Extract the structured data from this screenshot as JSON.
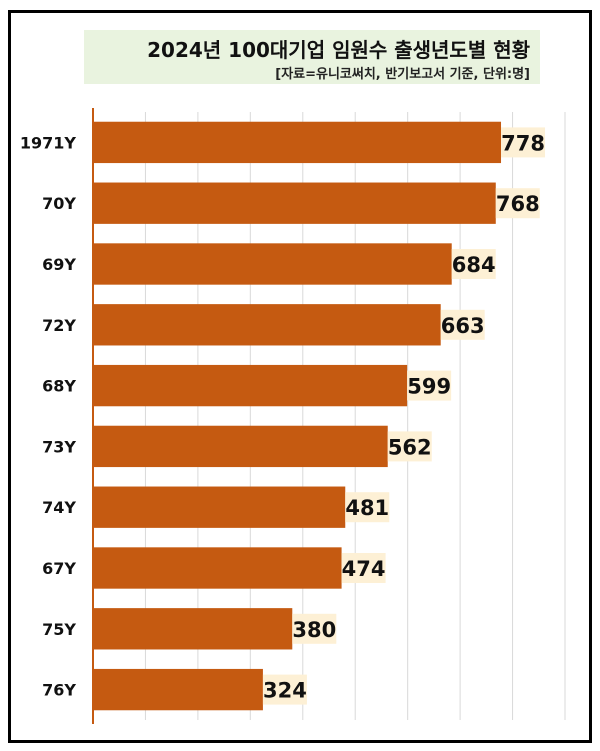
{
  "chart_data": {
    "type": "bar",
    "orientation": "horizontal",
    "title": "2024년 100대기업 임원수 출생년도별 현황",
    "subtitle": "[자료=유니코써치, 반기보고서 기준, 단위:명]",
    "categories": [
      "1971Y",
      "70Y",
      "69Y",
      "72Y",
      "68Y",
      "73Y",
      "74Y",
      "67Y",
      "75Y",
      "76Y"
    ],
    "values": [
      778,
      768,
      684,
      663,
      599,
      562,
      481,
      474,
      380,
      324
    ],
    "xlim": [
      0,
      900
    ],
    "grid": true,
    "colors": {
      "bar": "#c55a11",
      "label_bg": "#fdf0d5",
      "grid": "#d9d9d9",
      "axis": "#c55a11"
    }
  }
}
